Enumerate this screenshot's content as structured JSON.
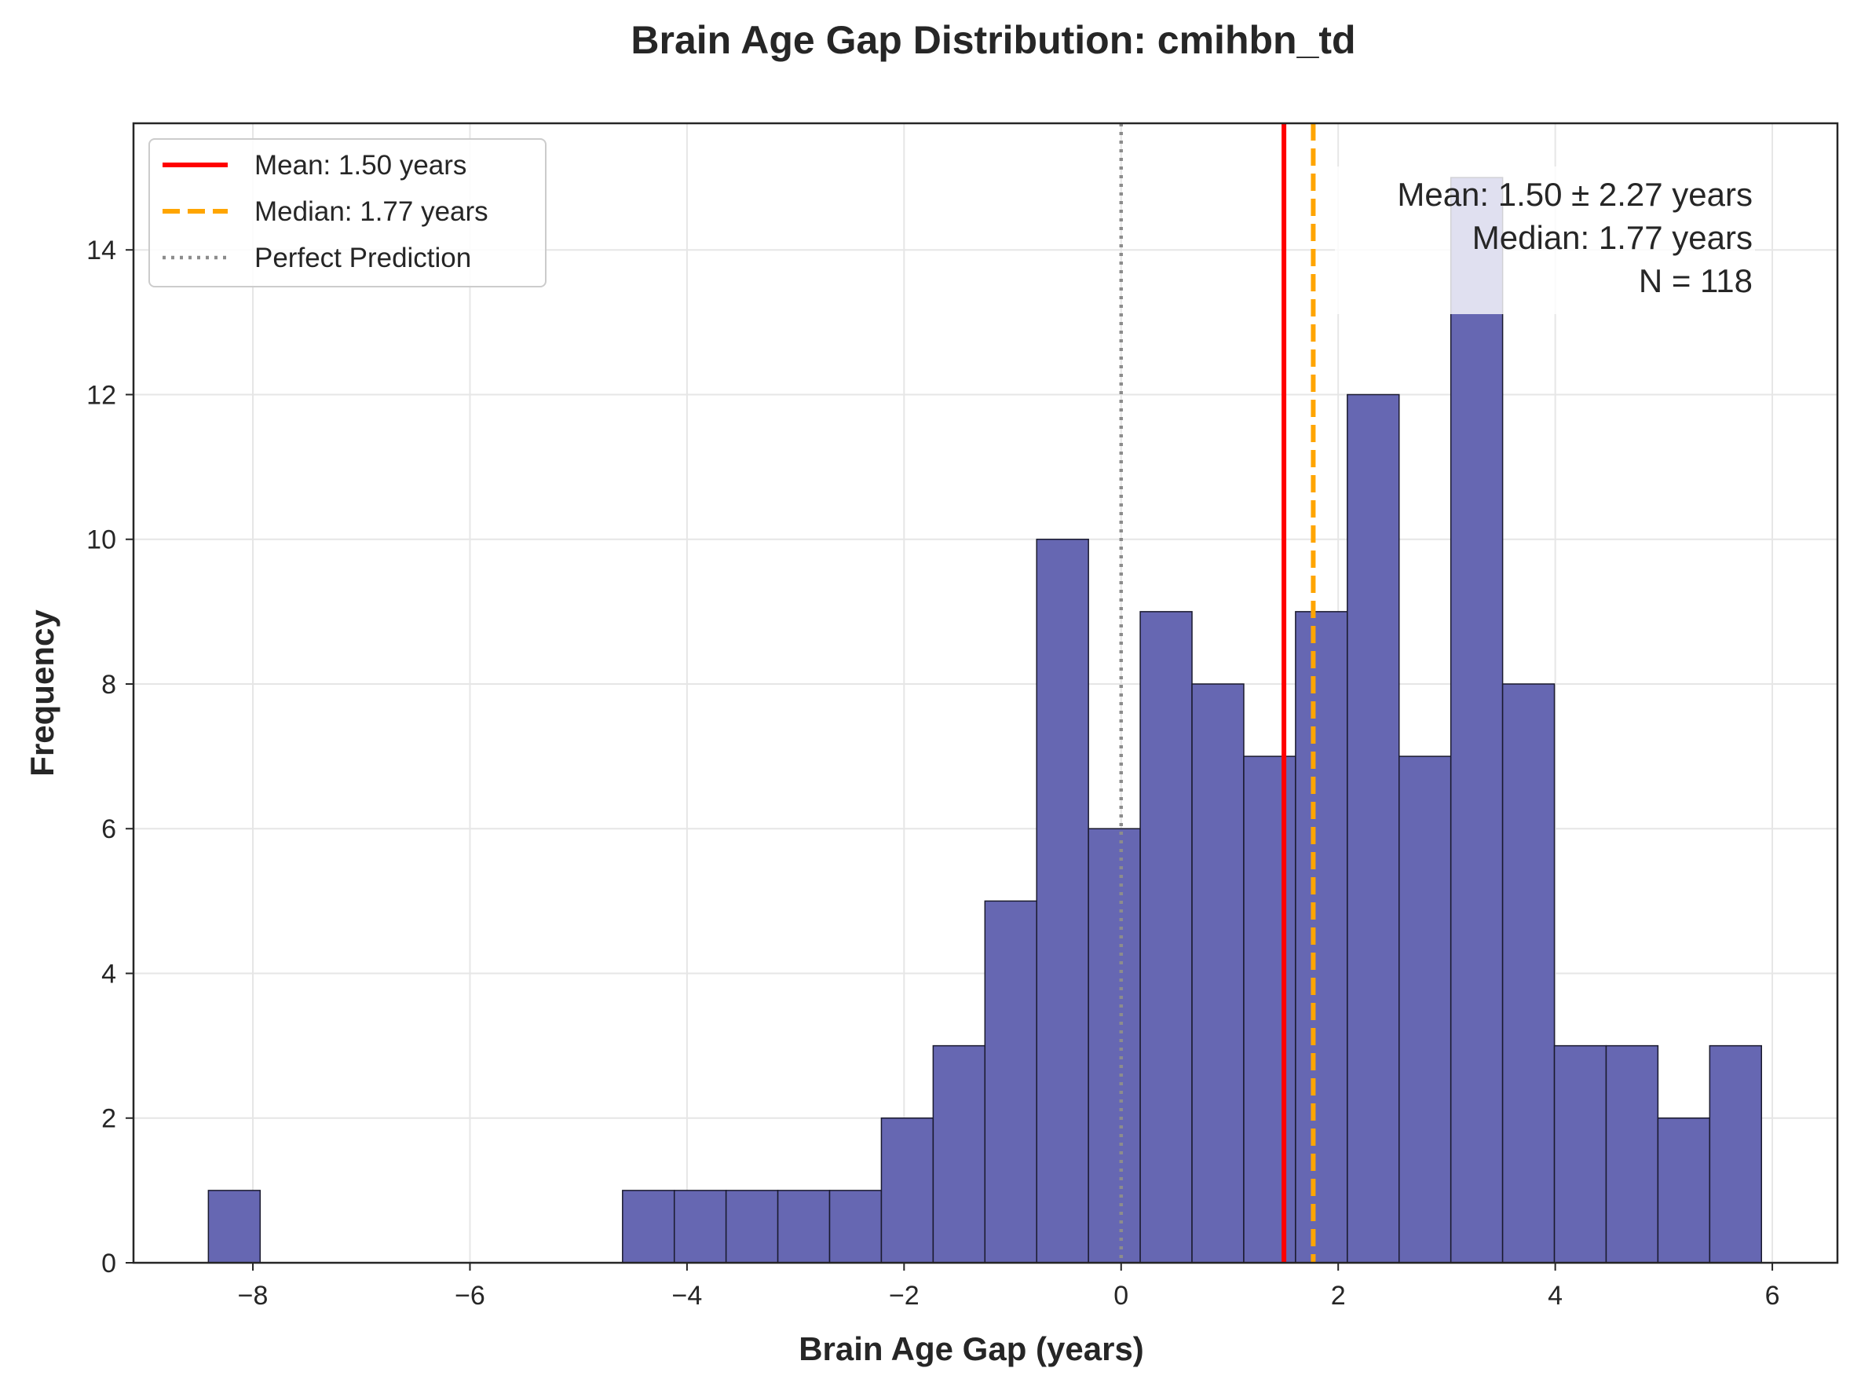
{
  "chart_data": {
    "type": "bar",
    "title": "Brain Age Gap Distribution: cmihbn_td",
    "xlabel": "Brain Age Gap (years)",
    "ylabel": "Frequency",
    "xlim": [
      -9.1,
      6.6
    ],
    "ylim": [
      0,
      15.75
    ],
    "xticks": [
      -8,
      -6,
      -4,
      -2,
      0,
      2,
      4,
      6
    ],
    "xtick_labels": [
      "−8",
      "−6",
      "−4",
      "−2",
      "0",
      "2",
      "4",
      "6"
    ],
    "yticks": [
      0,
      2,
      4,
      6,
      8,
      10,
      12,
      14
    ],
    "ytick_labels": [
      "0",
      "2",
      "4",
      "6",
      "8",
      "10",
      "12",
      "14"
    ],
    "grid": true,
    "bin_width": 0.477,
    "bins": [
      {
        "start": -8.41,
        "count": 1
      },
      {
        "start": -7.933,
        "count": 0
      },
      {
        "start": -7.456,
        "count": 0
      },
      {
        "start": -6.979,
        "count": 0
      },
      {
        "start": -6.502,
        "count": 0
      },
      {
        "start": -6.025,
        "count": 0
      },
      {
        "start": -5.548,
        "count": 0
      },
      {
        "start": -5.071,
        "count": 0
      },
      {
        "start": -4.594,
        "count": 1
      },
      {
        "start": -4.117,
        "count": 1
      },
      {
        "start": -3.64,
        "count": 1
      },
      {
        "start": -3.163,
        "count": 1
      },
      {
        "start": -2.686,
        "count": 1
      },
      {
        "start": -2.209,
        "count": 2
      },
      {
        "start": -1.732,
        "count": 3
      },
      {
        "start": -1.255,
        "count": 5
      },
      {
        "start": -0.778,
        "count": 10
      },
      {
        "start": -0.301,
        "count": 6
      },
      {
        "start": 0.176,
        "count": 9
      },
      {
        "start": 0.653,
        "count": 8
      },
      {
        "start": 1.13,
        "count": 7
      },
      {
        "start": 1.607,
        "count": 9
      },
      {
        "start": 2.084,
        "count": 12
      },
      {
        "start": 2.561,
        "count": 7
      },
      {
        "start": 3.038,
        "count": 15
      },
      {
        "start": 3.515,
        "count": 8
      },
      {
        "start": 3.992,
        "count": 3
      },
      {
        "start": 4.469,
        "count": 3
      },
      {
        "start": 4.946,
        "count": 2
      },
      {
        "start": 5.423,
        "count": 3
      }
    ],
    "bar_color": "#6667b2",
    "bar_edge_color": "#1a1a2e",
    "reference_lines": [
      {
        "label": "Mean: 1.50 years",
        "x": 1.5,
        "color": "#ff0000",
        "style": "solid"
      },
      {
        "label": "Median: 1.77 years",
        "x": 1.77,
        "color": "#ffa500",
        "style": "dashed"
      },
      {
        "label": "Perfect Prediction",
        "x": 0,
        "color": "#8c8c8c",
        "style": "dotted"
      }
    ],
    "legend_position": "top-left",
    "stats_box": {
      "lines": [
        "Mean: 1.50 ± 2.27 years",
        "Median: 1.77 years",
        "N = 118"
      ],
      "position": "top-right"
    }
  }
}
